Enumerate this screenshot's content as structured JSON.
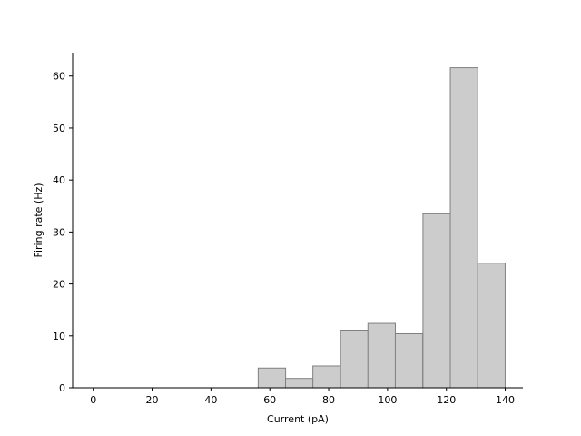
{
  "chart_data": {
    "type": "bar",
    "title": "",
    "xlabel": "Current (pA)",
    "ylabel": "Firing rate (Hz)",
    "xlim": [
      -7,
      146
    ],
    "ylim": [
      0,
      64.5
    ],
    "x_ticks": [
      0,
      20,
      40,
      60,
      80,
      100,
      120,
      140
    ],
    "y_ticks": [
      0,
      10,
      20,
      30,
      40,
      50,
      60
    ],
    "bin_width": 9.33,
    "bars": [
      {
        "x": 60.7,
        "value": 3.8
      },
      {
        "x": 70.0,
        "value": 1.8
      },
      {
        "x": 79.3,
        "value": 4.2
      },
      {
        "x": 88.7,
        "value": 11.1
      },
      {
        "x": 98.0,
        "value": 12.4
      },
      {
        "x": 107.3,
        "value": 10.4
      },
      {
        "x": 116.7,
        "value": 33.5
      },
      {
        "x": 126.0,
        "value": 61.6
      },
      {
        "x": 135.3,
        "value": 24.0
      }
    ],
    "bar_color": "#cccccc",
    "bar_edge_color": "#808080",
    "grid": false,
    "legend": "none"
  }
}
